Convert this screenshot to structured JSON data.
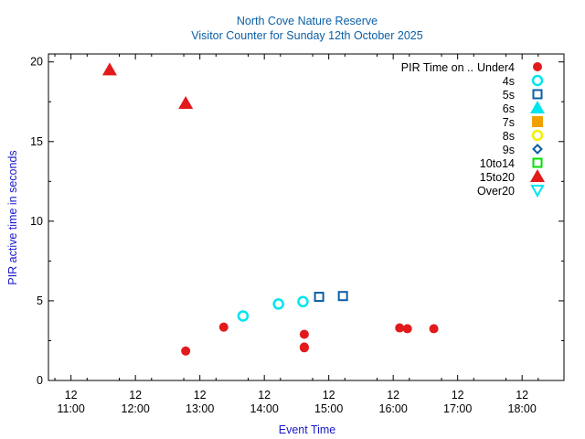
{
  "chart_data": {
    "type": "scatter",
    "title": "North Cove Nature Reserve",
    "subtitle": "Visitor Counter for Sunday 12th October 2025",
    "xlabel": "Event Time",
    "ylabel": "PIR active time in seconds",
    "xlim": [
      10.65,
      18.65
    ],
    "ylim": [
      0,
      20.5
    ],
    "x_ticks": [
      {
        "value": 11,
        "line1": "12",
        "line2": "11:00"
      },
      {
        "value": 12,
        "line1": "12",
        "line2": "12:00"
      },
      {
        "value": 13,
        "line1": "12",
        "line2": "13:00"
      },
      {
        "value": 14,
        "line1": "12",
        "line2": "14:00"
      },
      {
        "value": 15,
        "line1": "12",
        "line2": "15:00"
      },
      {
        "value": 16,
        "line1": "12",
        "line2": "16:00"
      },
      {
        "value": 17,
        "line1": "12",
        "line2": "17:00"
      },
      {
        "value": 18,
        "line1": "12",
        "line2": "18:00"
      }
    ],
    "y_ticks": [
      0,
      5,
      10,
      15,
      20
    ],
    "grid": false,
    "legend_position": "top-right",
    "legend_title": "PIR Time on ..",
    "series": [
      {
        "name": "Under4",
        "marker": "circle-filled",
        "color": "#e31a1c",
        "points": [
          [
            12.78,
            1.85
          ],
          [
            13.37,
            3.35
          ],
          [
            14.62,
            2.9
          ],
          [
            14.62,
            2.1
          ],
          [
            14.62,
            2.05
          ],
          [
            16.1,
            3.3
          ],
          [
            16.22,
            3.25
          ],
          [
            16.63,
            3.25
          ]
        ]
      },
      {
        "name": "4s",
        "marker": "circle-open",
        "color": "#00e5ee",
        "points": [
          [
            13.67,
            4.05
          ],
          [
            14.22,
            4.8
          ],
          [
            14.6,
            4.95
          ]
        ]
      },
      {
        "name": "5s",
        "marker": "square-open",
        "color": "#0b5fa5",
        "points": [
          [
            14.85,
            5.25
          ],
          [
            15.22,
            5.3
          ]
        ]
      },
      {
        "name": "6s",
        "marker": "triangle-up-filled",
        "color": "#00e5ee",
        "points": []
      },
      {
        "name": "7s",
        "marker": "square-filled",
        "color": "#f0a000",
        "points": []
      },
      {
        "name": "8s",
        "marker": "circle-open",
        "color": "#f0f000",
        "points": []
      },
      {
        "name": "9s",
        "marker": "diamond-open",
        "color": "#0b5fa5",
        "points": []
      },
      {
        "name": "10to14",
        "marker": "square-open",
        "color": "#00e000",
        "points": []
      },
      {
        "name": "15to20",
        "marker": "triangle-up-filled",
        "color": "#e31a1c",
        "points": [
          [
            11.6,
            19.5
          ],
          [
            12.78,
            17.4
          ]
        ]
      },
      {
        "name": "Over20",
        "marker": "triangle-down-open",
        "color": "#00e5ee",
        "points": []
      }
    ]
  }
}
